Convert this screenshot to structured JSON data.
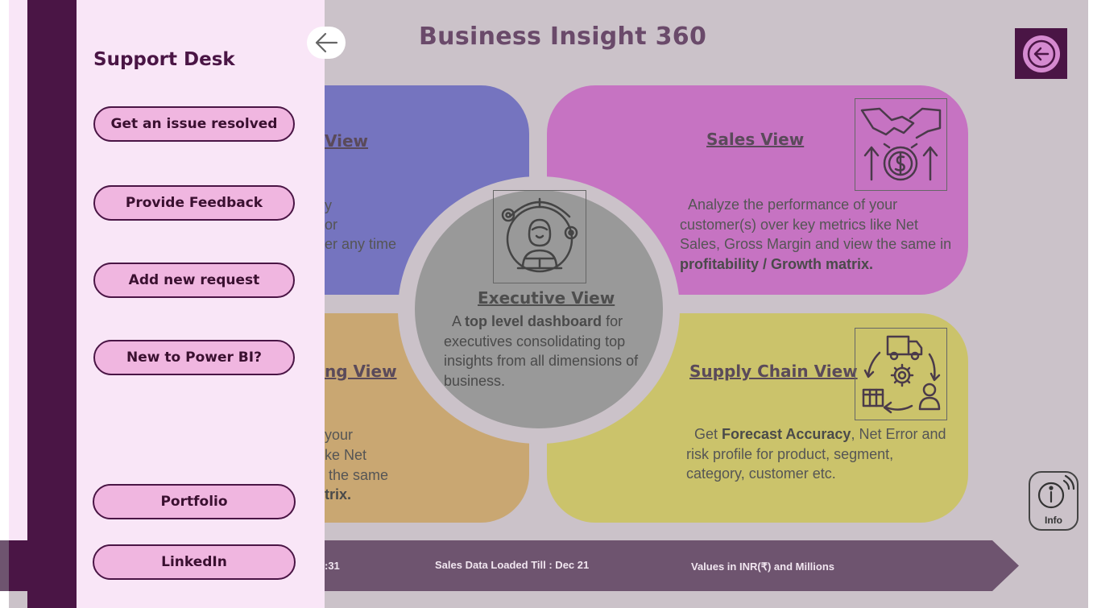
{
  "header": {
    "title": "Business Insight 360"
  },
  "cards": {
    "finance": {
      "title": "View",
      "text_lines": [
        "y",
        "or",
        "er any time"
      ]
    },
    "sales": {
      "title": "Sales View",
      "text_1": "Analyze the performance of your customer(s) over key metrics like Net Sales, Gross Margin and view the same in ",
      "text_bold": "profitability / Growth matrix."
    },
    "marketing": {
      "title": "ng View",
      "line_1": "your",
      "line_2": "ke Net",
      "line_3": " the same",
      "line_bold": "trix."
    },
    "supply": {
      "title": "Supply Chain View",
      "text_pre": "Get ",
      "text_bold": "Forecast Accuracy",
      "text_post": ", Net Error and risk profile for product, segment, category, customer etc."
    }
  },
  "center": {
    "title": "Executive View",
    "text_pre": "A ",
    "text_bold": "top level dashboard",
    "text_post": " for executives consolidating top insights from all dimensions of business."
  },
  "ribbon": {
    "item_1": ":31",
    "item_2": "Sales Data Loaded Till : Dec 21",
    "item_3": "Values in INR(₹) and Millions"
  },
  "info": {
    "label": "Info"
  },
  "support_panel": {
    "title": "Support Desk",
    "buttons": [
      "Get an issue resolved",
      "Provide Feedback",
      "Add new request",
      "New to Power BI?",
      "Portfolio",
      "LinkedIn"
    ]
  },
  "icons": {
    "home": "back-circle-icon",
    "close_panel": "arrow-left-icon",
    "sales": "handshake-dollar-icon",
    "supply": "supply-cycle-icon",
    "executive": "executive-globe-icon",
    "info": "info-icon"
  },
  "colors": {
    "dark_purple": "#4a1545",
    "panel_bg": "#f9e6f7",
    "button_bg": "#f0b6e0",
    "card_purple": "#7574bf",
    "card_pink": "#c673c2",
    "card_tan": "#c9a772",
    "card_olive": "#cbc36b",
    "ribbon": "#6e546f"
  }
}
